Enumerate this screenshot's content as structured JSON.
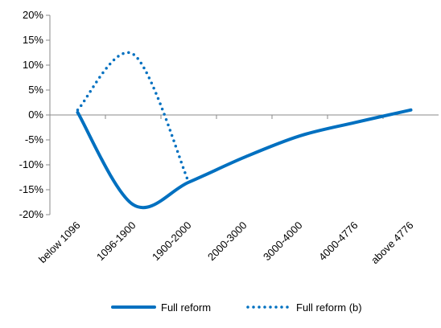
{
  "chart_data": {
    "type": "line",
    "categories": [
      "below 1096",
      "1096-1900",
      "1900-2000",
      "2000-3000",
      "3000-4000",
      "4000-4776",
      "above 4776"
    ],
    "series": [
      {
        "name": "Full reform",
        "color": "#0070c0",
        "style": "solid",
        "values": [
          0.5,
          -18,
          -13.5,
          -8.5,
          -4.2,
          -1.5,
          1
        ]
      },
      {
        "name": "Full reform (b)",
        "color": "#0070c0",
        "style": "dotted",
        "values": [
          1,
          12.2,
          -13.5,
          null,
          null,
          null,
          null
        ]
      }
    ],
    "ylim": [
      -20,
      20
    ],
    "yticks": [
      {
        "value": -20,
        "label": "-20%"
      },
      {
        "value": -15,
        "label": "-15%"
      },
      {
        "value": -10,
        "label": "-10%"
      },
      {
        "value": -5,
        "label": "-5%"
      },
      {
        "value": 0,
        "label": "0%"
      },
      {
        "value": 5,
        "label": "5%"
      },
      {
        "value": 10,
        "label": "10%"
      },
      {
        "value": 15,
        "label": "15%"
      },
      {
        "value": 20,
        "label": "20%"
      }
    ],
    "legend": "bottom"
  }
}
